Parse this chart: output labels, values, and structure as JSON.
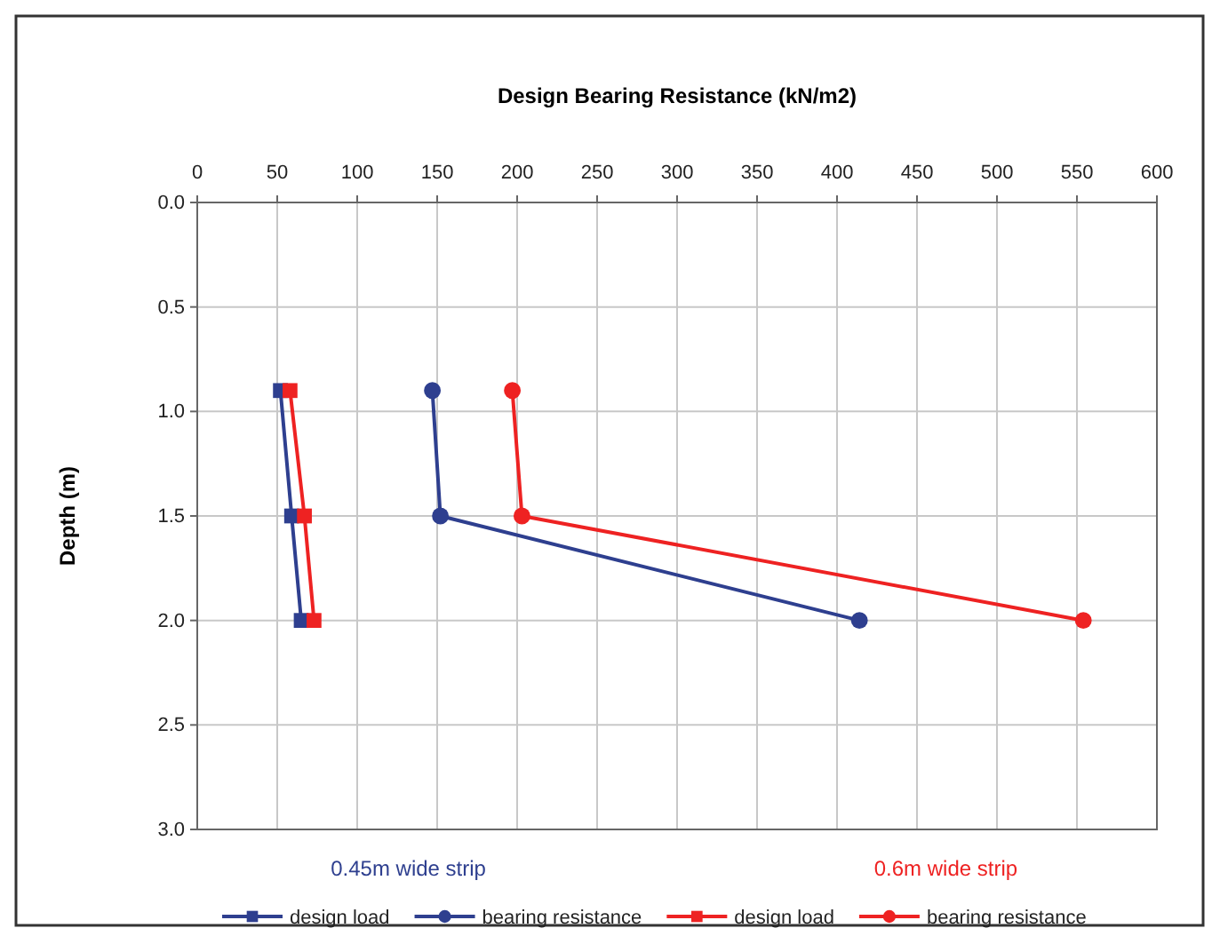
{
  "chart_data": {
    "type": "line",
    "xlabel": "Design Bearing Resistance (kN/m2)",
    "ylabel": "Depth (m)",
    "xlim": [
      0,
      600
    ],
    "xticks": [
      0,
      50,
      100,
      150,
      200,
      250,
      300,
      350,
      400,
      450,
      500,
      550,
      600
    ],
    "ylim": [
      3.0,
      0.0
    ],
    "yticks": [
      {
        "value": 0,
        "label": "0.0"
      },
      {
        "value": 0.5,
        "label": "0.5"
      },
      {
        "value": 1,
        "label": "1.0"
      },
      {
        "value": 1.5,
        "label": "1.5"
      },
      {
        "value": 2,
        "label": "2.0"
      },
      {
        "value": 2.5,
        "label": "2.5"
      },
      {
        "value": 3,
        "label": "3.0"
      }
    ],
    "grid": true,
    "legend": "bottom",
    "series": [
      {
        "name": "design load",
        "color": "#2e3f8f",
        "marker": "square",
        "x": [
          52,
          59,
          65
        ],
        "values": [
          0.9,
          1.5,
          2.0
        ]
      },
      {
        "name": "bearing resistance",
        "color": "#2e3f8f",
        "marker": "circle",
        "x": [
          147,
          152,
          414
        ],
        "values": [
          0.9,
          1.5,
          2.0
        ]
      },
      {
        "name": "design load",
        "color": "#ee2222",
        "marker": "square",
        "x": [
          58,
          67,
          73
        ],
        "values": [
          0.9,
          1.5,
          2.0
        ]
      },
      {
        "name": "bearing resistance",
        "color": "#ee2222",
        "marker": "circle",
        "x": [
          197,
          203,
          554
        ],
        "values": [
          0.9,
          1.5,
          2.0
        ]
      }
    ],
    "annotations": [
      "0.45m wide strip",
      "0.6m wide strip"
    ]
  }
}
